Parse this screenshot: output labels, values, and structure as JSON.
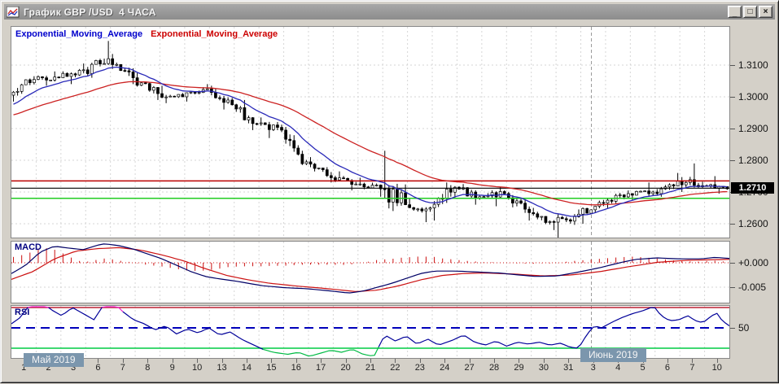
{
  "window": {
    "title": "График GBP /USD  4 ЧАСА",
    "controls": {
      "minimize": "_",
      "maximize": "□",
      "close": "×"
    }
  },
  "legend": {
    "ema_fast_label": "Exponential_Moving_Average",
    "ema_slow_label": "Exponential_Moving_Average"
  },
  "panels": {
    "macd_label": "MACD",
    "rsi_label": "RSI"
  },
  "axis": {
    "price_ticks": [
      "1.3100",
      "1.3000",
      "1.2900",
      "1.2800",
      "1.2700",
      "1.2600"
    ],
    "price_tick_values": [
      1.31,
      1.3,
      1.29,
      1.28,
      1.27,
      1.26
    ],
    "current_price": "1.2710",
    "macd_ticks": [
      "+0.000",
      "-0.005"
    ],
    "macd_tick_values": [
      0,
      -0.005
    ],
    "rsi_ticks": [
      "50"
    ],
    "rsi_tick_values": [
      50
    ]
  },
  "months": [
    {
      "label": "Май 2019",
      "day_index": 0
    },
    {
      "label": "Июнь 2019",
      "day_index": 23
    }
  ],
  "colors": {
    "window_bg": "#d4d0c8",
    "titlebar_text": "#f4f4f4",
    "up_candle": "#ffffff",
    "down_candle": "#000000",
    "ema_fast": "#2929b8",
    "ema_slow": "#cc2222",
    "legend_fast": "#0000cc",
    "legend_slow": "#cc0000",
    "hline_red": "#bb0000",
    "hline_black": "#000000",
    "hline_green": "#22cc22",
    "macd_line": "#000066",
    "macd_signal": "#cc1111",
    "macd_hist": "#cc1111",
    "rsi_line": "#000099",
    "rsi_above_color": "#ee22cc",
    "rsi_below_color": "#00bb44",
    "rsi_overbought_line": "#bb2233",
    "rsi_oversold_line": "#00cc44",
    "rsi_mid_line": "#0000bb",
    "grid": "#d6d6d6",
    "month_separator": "#9a9a9a",
    "month_badge_bg": "#7b96ad"
  },
  "chart_data": {
    "type": "candlestick",
    "instrument": "GBP/USD",
    "timeframe": "4 ЧАСА",
    "title": "График GBP /USD 4 ЧАСА",
    "last_price": 1.271,
    "ylim": [
      1.2556,
      1.3226
    ],
    "candles_per_day": 6,
    "days": [
      {
        "date": "1",
        "o": 1.3005,
        "h": 1.3065,
        "l": 1.2985,
        "c": 1.3055
      },
      {
        "date": "2",
        "o": 1.3055,
        "h": 1.308,
        "l": 1.3035,
        "c": 1.306
      },
      {
        "date": "3",
        "o": 1.306,
        "h": 1.3105,
        "l": 1.304,
        "c": 1.3085
      },
      {
        "date": "6",
        "o": 1.308,
        "h": 1.3176,
        "l": 1.306,
        "c": 1.312
      },
      {
        "date": "7",
        "o": 1.312,
        "h": 1.3135,
        "l": 1.304,
        "c": 1.306
      },
      {
        "date": "8",
        "o": 1.306,
        "h": 1.3075,
        "l": 1.299,
        "c": 1.301
      },
      {
        "date": "9",
        "o": 1.301,
        "h": 1.3035,
        "l": 1.298,
        "c": 1.3
      },
      {
        "date": "10",
        "o": 1.3,
        "h": 1.304,
        "l": 1.2985,
        "c": 1.3025
      },
      {
        "date": "13",
        "o": 1.302,
        "h": 1.3035,
        "l": 1.296,
        "c": 1.2975
      },
      {
        "date": "14",
        "o": 1.2975,
        "h": 1.299,
        "l": 1.2895,
        "c": 1.2915
      },
      {
        "date": "15",
        "o": 1.2915,
        "h": 1.2935,
        "l": 1.287,
        "c": 1.2895
      },
      {
        "date": "16",
        "o": 1.2895,
        "h": 1.2905,
        "l": 1.2785,
        "c": 1.2795
      },
      {
        "date": "17",
        "o": 1.2795,
        "h": 1.281,
        "l": 1.273,
        "c": 1.2745
      },
      {
        "date": "20",
        "o": 1.2745,
        "h": 1.2765,
        "l": 1.2705,
        "c": 1.2725
      },
      {
        "date": "21",
        "o": 1.2725,
        "h": 1.2745,
        "l": 1.2685,
        "c": 1.271
      },
      {
        "date": "22",
        "o": 1.271,
        "h": 1.283,
        "l": 1.264,
        "c": 1.266
      },
      {
        "date": "23",
        "o": 1.266,
        "h": 1.268,
        "l": 1.2605,
        "c": 1.265
      },
      {
        "date": "24",
        "o": 1.265,
        "h": 1.273,
        "l": 1.261,
        "c": 1.2715
      },
      {
        "date": "27",
        "o": 1.2715,
        "h": 1.2725,
        "l": 1.266,
        "c": 1.2685
      },
      {
        "date": "28",
        "o": 1.2685,
        "h": 1.2715,
        "l": 1.2655,
        "c": 1.2695
      },
      {
        "date": "29",
        "o": 1.2695,
        "h": 1.27,
        "l": 1.261,
        "c": 1.2635
      },
      {
        "date": "30",
        "o": 1.2635,
        "h": 1.265,
        "l": 1.258,
        "c": 1.2605
      },
      {
        "date": "31",
        "o": 1.2605,
        "h": 1.2645,
        "l": 1.2555,
        "c": 1.263
      },
      {
        "date": "3",
        "o": 1.263,
        "h": 1.2675,
        "l": 1.26,
        "c": 1.2665
      },
      {
        "date": "4",
        "o": 1.2665,
        "h": 1.2705,
        "l": 1.265,
        "c": 1.2695
      },
      {
        "date": "5",
        "o": 1.2695,
        "h": 1.273,
        "l": 1.2675,
        "c": 1.27
      },
      {
        "date": "6",
        "o": 1.27,
        "h": 1.276,
        "l": 1.2685,
        "c": 1.2735
      },
      {
        "date": "7",
        "o": 1.2735,
        "h": 1.279,
        "l": 1.27,
        "c": 1.272
      },
      {
        "date": "10",
        "o": 1.272,
        "h": 1.275,
        "l": 1.2695,
        "c": 1.271
      }
    ],
    "hlines": [
      {
        "price": 1.2735,
        "color": "#bb0000"
      },
      {
        "price": 1.2712,
        "color": "#000000"
      },
      {
        "price": 1.268,
        "color": "#22cc22"
      }
    ],
    "indicators": {
      "ema_fast_period": 12,
      "ema_slow_period": 40,
      "macd": {
        "line": [
          [
            0,
            -0.0022
          ],
          [
            0.02,
            -0.0005
          ],
          [
            0.04,
            0.0022
          ],
          [
            0.06,
            0.0034
          ],
          [
            0.08,
            0.003
          ],
          [
            0.1,
            0.0027
          ],
          [
            0.12,
            0.0036
          ],
          [
            0.13,
            0.0039
          ],
          [
            0.15,
            0.0035
          ],
          [
            0.17,
            0.0028
          ],
          [
            0.19,
            0.0018
          ],
          [
            0.21,
            0.0008
          ],
          [
            0.23,
            -0.0005
          ],
          [
            0.25,
            -0.0018
          ],
          [
            0.27,
            -0.0028
          ],
          [
            0.29,
            -0.0033
          ],
          [
            0.31,
            -0.0037
          ],
          [
            0.33,
            -0.0042
          ],
          [
            0.35,
            -0.0047
          ],
          [
            0.38,
            -0.0051
          ],
          [
            0.41,
            -0.0053
          ],
          [
            0.44,
            -0.0057
          ],
          [
            0.47,
            -0.0062
          ],
          [
            0.49,
            -0.0058
          ],
          [
            0.51,
            -0.005
          ],
          [
            0.53,
            -0.0042
          ],
          [
            0.55,
            -0.0032
          ],
          [
            0.57,
            -0.0022
          ],
          [
            0.59,
            -0.0017
          ],
          [
            0.62,
            -0.0017
          ],
          [
            0.65,
            -0.0019
          ],
          [
            0.68,
            -0.0021
          ],
          [
            0.7,
            -0.0024
          ],
          [
            0.73,
            -0.0028
          ],
          [
            0.76,
            -0.0027
          ],
          [
            0.79,
            -0.0019
          ],
          [
            0.82,
            -0.001
          ],
          [
            0.85,
            0.0001
          ],
          [
            0.87,
            0.0007
          ],
          [
            0.9,
            0.001
          ],
          [
            0.93,
            0.0008
          ],
          [
            0.96,
            0.0008
          ],
          [
            0.98,
            0.0011
          ],
          [
            1,
            0.0009
          ]
        ],
        "signal": [
          [
            0,
            -0.0034
          ],
          [
            0.03,
            -0.0018
          ],
          [
            0.06,
            0.0008
          ],
          [
            0.09,
            0.0024
          ],
          [
            0.12,
            0.0029
          ],
          [
            0.15,
            0.0031
          ],
          [
            0.18,
            0.0026
          ],
          [
            0.21,
            0.0016
          ],
          [
            0.24,
            0.0004
          ],
          [
            0.27,
            -0.0012
          ],
          [
            0.3,
            -0.0026
          ],
          [
            0.33,
            -0.0035
          ],
          [
            0.36,
            -0.0042
          ],
          [
            0.4,
            -0.0048
          ],
          [
            0.44,
            -0.0053
          ],
          [
            0.48,
            -0.0059
          ],
          [
            0.51,
            -0.0056
          ],
          [
            0.54,
            -0.0047
          ],
          [
            0.57,
            -0.0035
          ],
          [
            0.6,
            -0.0026
          ],
          [
            0.63,
            -0.0022
          ],
          [
            0.66,
            -0.0021
          ],
          [
            0.7,
            -0.0023
          ],
          [
            0.74,
            -0.0027
          ],
          [
            0.78,
            -0.0025
          ],
          [
            0.82,
            -0.0018
          ],
          [
            0.86,
            -0.0008
          ],
          [
            0.9,
            0.0001
          ],
          [
            0.94,
            0.0005
          ],
          [
            1,
            0.0007
          ]
        ]
      },
      "rsi": {
        "overbought": 70,
        "oversold": 30,
        "mid": 50,
        "line": [
          [
            0,
            54
          ],
          [
            0.012,
            60
          ],
          [
            0.027,
            74
          ],
          [
            0.04,
            77
          ],
          [
            0.055,
            68
          ],
          [
            0.07,
            62
          ],
          [
            0.085,
            70
          ],
          [
            0.1,
            64
          ],
          [
            0.115,
            58
          ],
          [
            0.128,
            72
          ],
          [
            0.14,
            77
          ],
          [
            0.155,
            66
          ],
          [
            0.17,
            58
          ],
          [
            0.185,
            54
          ],
          [
            0.2,
            48
          ],
          [
            0.215,
            52
          ],
          [
            0.23,
            44
          ],
          [
            0.245,
            49
          ],
          [
            0.26,
            45
          ],
          [
            0.275,
            50
          ],
          [
            0.29,
            43
          ],
          [
            0.305,
            46
          ],
          [
            0.32,
            39
          ],
          [
            0.335,
            34
          ],
          [
            0.35,
            29
          ],
          [
            0.365,
            26
          ],
          [
            0.385,
            24
          ],
          [
            0.4,
            26
          ],
          [
            0.415,
            22
          ],
          [
            0.43,
            25
          ],
          [
            0.445,
            28
          ],
          [
            0.46,
            26
          ],
          [
            0.475,
            29
          ],
          [
            0.49,
            24
          ],
          [
            0.505,
            22
          ],
          [
            0.52,
            43
          ],
          [
            0.535,
            37
          ],
          [
            0.55,
            42
          ],
          [
            0.565,
            34
          ],
          [
            0.58,
            39
          ],
          [
            0.595,
            33
          ],
          [
            0.615,
            38
          ],
          [
            0.63,
            43
          ],
          [
            0.645,
            36
          ],
          [
            0.66,
            33
          ],
          [
            0.675,
            37
          ],
          [
            0.69,
            32
          ],
          [
            0.705,
            36
          ],
          [
            0.72,
            34
          ],
          [
            0.735,
            36
          ],
          [
            0.75,
            33
          ],
          [
            0.765,
            35
          ],
          [
            0.778,
            31
          ],
          [
            0.79,
            30
          ],
          [
            0.802,
            44
          ],
          [
            0.812,
            52
          ],
          [
            0.822,
            50
          ],
          [
            0.835,
            55
          ],
          [
            0.85,
            60
          ],
          [
            0.865,
            64
          ],
          [
            0.88,
            67
          ],
          [
            0.895,
            71
          ],
          [
            0.905,
            62
          ],
          [
            0.917,
            57
          ],
          [
            0.93,
            58
          ],
          [
            0.942,
            62
          ],
          [
            0.953,
            57
          ],
          [
            0.963,
            55
          ],
          [
            0.972,
            60
          ],
          [
            0.982,
            65
          ],
          [
            0.99,
            57
          ],
          [
            1,
            52
          ]
        ]
      }
    }
  }
}
